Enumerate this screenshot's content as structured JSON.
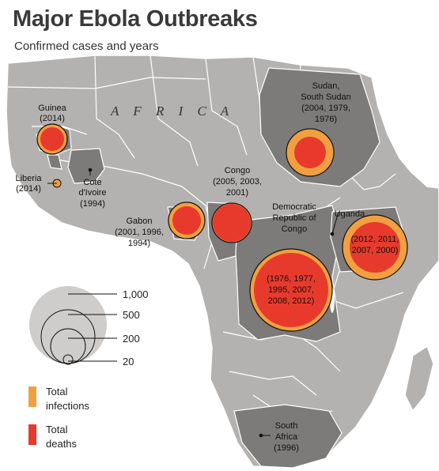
{
  "title": "Major Ebola Outbreaks",
  "subtitle": "Confirmed cases and years",
  "continent_label": "A F R I C A",
  "colors": {
    "land": "#b4b2b0",
    "affected_land": "#7d7b7a",
    "sea": "#ffffff",
    "infections": "#f0a040",
    "deaths": "#e83a2c",
    "border": "#ffffff"
  },
  "outbreaks": [
    {
      "id": "guinea",
      "lines": [
        "Guinea",
        "(2014)"
      ]
    },
    {
      "id": "liberia",
      "lines": [
        "Liberia",
        "(2014)"
      ]
    },
    {
      "id": "cote",
      "lines": [
        "Cote",
        "d'Ivoire",
        "(1994)"
      ]
    },
    {
      "id": "sudan",
      "lines": [
        "Sudan,",
        "South Sudan",
        "(2004, 1979,",
        "1976)"
      ]
    },
    {
      "id": "congo",
      "lines": [
        "Congo",
        "(2005, 2003,",
        "2001)"
      ]
    },
    {
      "id": "gabon",
      "lines": [
        "Gabon",
        "(2001, 1996,",
        "1994)"
      ]
    },
    {
      "id": "drc_name",
      "lines": [
        "Democratic",
        "Republic of",
        "Congo"
      ]
    },
    {
      "id": "drc_years",
      "lines": [
        "(1976, 1977,",
        "1995, 2007,",
        "2008, 2012)"
      ]
    },
    {
      "id": "uganda_name",
      "lines": [
        "Uganda"
      ]
    },
    {
      "id": "uganda_years",
      "lines": [
        "(2012, 2011,",
        "2007, 2000)"
      ]
    },
    {
      "id": "southafrica",
      "lines": [
        "South",
        "Africa",
        "(1996)"
      ]
    }
  ],
  "size_legend": {
    "values": [
      "1,000",
      "500",
      "200",
      "20"
    ]
  },
  "color_legend": [
    {
      "label_lines": [
        "Total",
        "infections"
      ],
      "color": "#f0a040"
    },
    {
      "label_lines": [
        "Total",
        "deaths"
      ],
      "color": "#e83a2c"
    }
  ]
}
